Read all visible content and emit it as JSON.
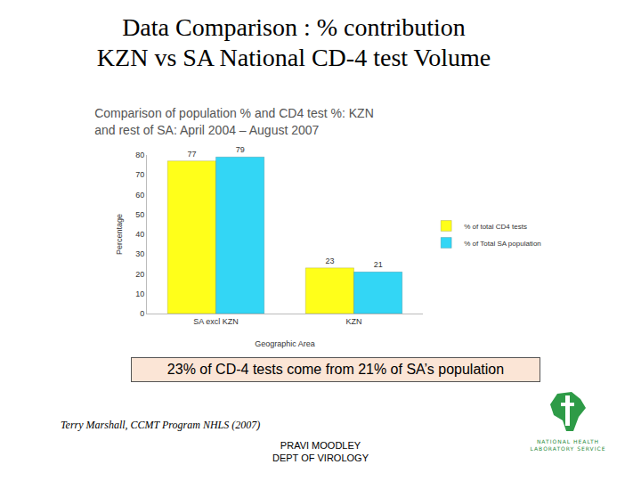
{
  "slide": {
    "title": [
      "Data Comparison : % contribution",
      "KZN vs SA National CD-4 test Volume"
    ],
    "caption": "23% of CD-4 tests come from 21% of SA’s population",
    "footnote": "Terry Marshall, CCMT Program NHLS (2007)",
    "presenter": [
      "PRAVI MOODLEY",
      "DEPT OF VIROLOGY"
    ],
    "logo": [
      "NATIONAL HEALTH",
      "LABORATORY SERVICE"
    ]
  },
  "chart_data": {
    "type": "bar",
    "title": [
      "Comparison of population % and CD4 test %: KZN",
      "and rest of SA: April 2004 – August 2007"
    ],
    "x_label": "Geographic Area",
    "y_label": "Percentage",
    "categories": [
      "SA excl KZN",
      "KZN"
    ],
    "series": [
      {
        "name": "% of total CD4 tests",
        "color": "#ffff1a",
        "values": [
          77,
          23
        ]
      },
      {
        "name": "% of Total SA population",
        "color": "#33d6f5",
        "values": [
          79,
          21
        ]
      }
    ],
    "ylim": [
      0,
      80
    ],
    "yticks": [
      0,
      10,
      20,
      30,
      40,
      50,
      60,
      70,
      80
    ],
    "grid": false,
    "legend": "right",
    "data_labels": true
  }
}
